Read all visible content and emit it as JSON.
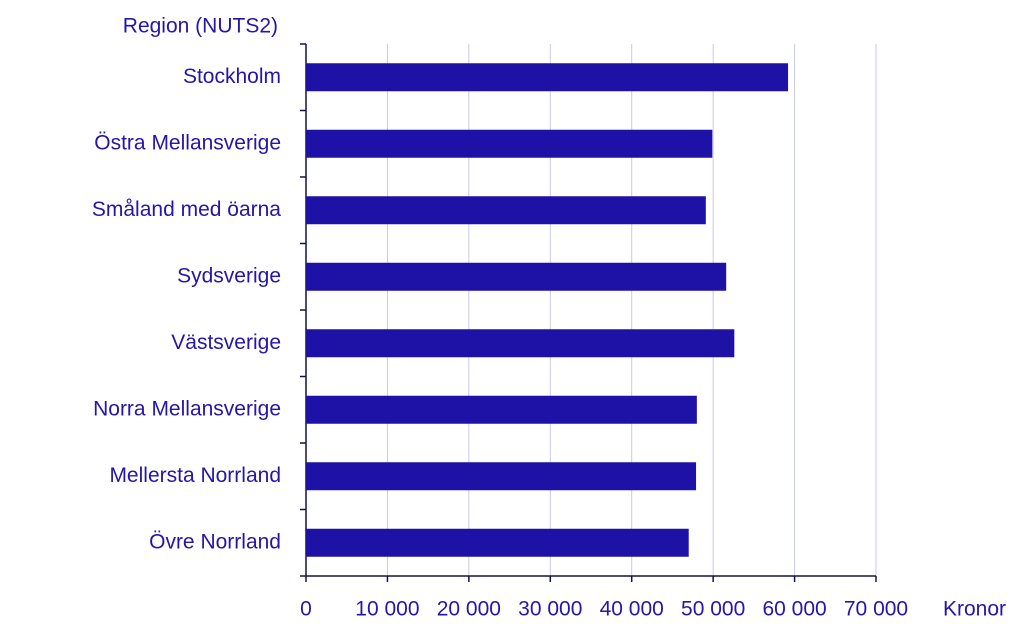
{
  "chart_data": {
    "type": "bar",
    "orientation": "horizontal",
    "y_axis_label": "Region (NUTS2)",
    "x_axis_label": "Kronor",
    "categories": [
      "Stockholm",
      "Östra Mellansverige",
      "Småland med öarna",
      "Sydsverige",
      "Västsverige",
      "Norra Mellansverige",
      "Mellersta Norrland",
      "Övre Norrland"
    ],
    "values": [
      59200,
      49900,
      49100,
      51600,
      52600,
      48000,
      47900,
      47000
    ],
    "color": "#1e12a6",
    "xlim": [
      0,
      70000
    ],
    "xticks": [
      0,
      {
        "value": 10000,
        "label": "10 000"
      },
      {
        "value": 20000,
        "label": "20 000"
      },
      {
        "value": 30000,
        "label": "30 000"
      },
      {
        "value": 40000,
        "label": "40 000"
      },
      {
        "value": 50000,
        "label": "50 000"
      },
      {
        "value": 60000,
        "label": "60 000"
      },
      {
        "value": 70000,
        "label": "70 000"
      }
    ],
    "grid": true
  }
}
